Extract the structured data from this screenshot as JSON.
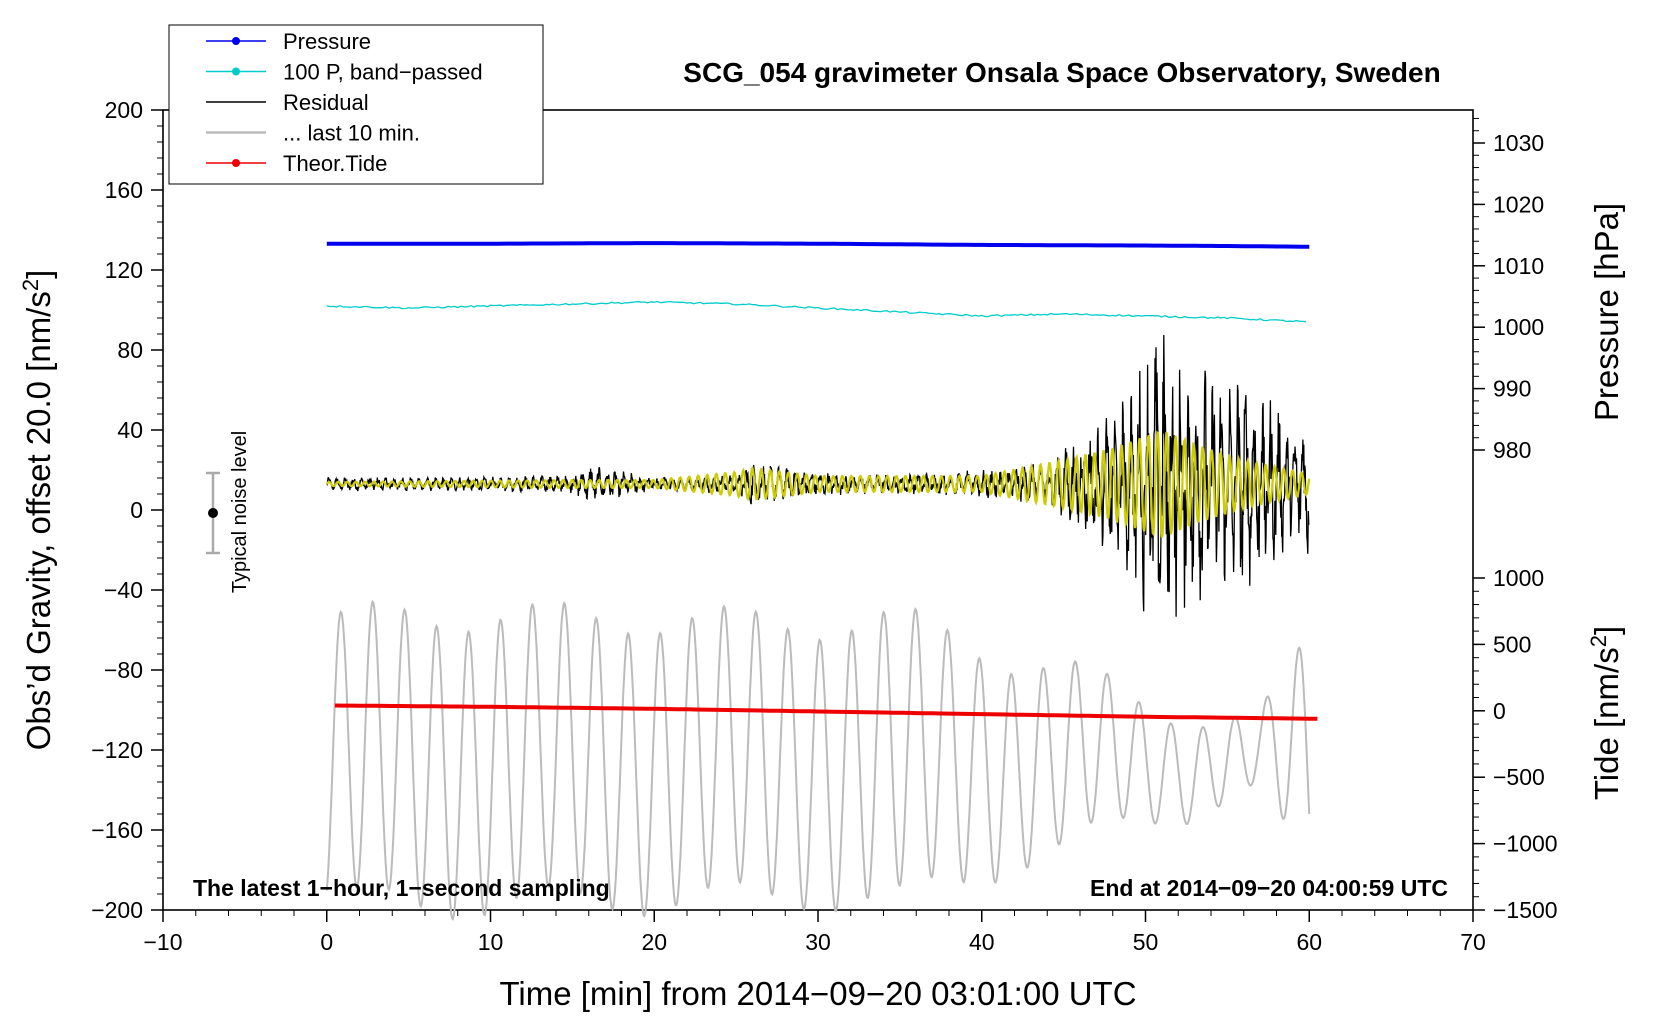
{
  "chart_data": {
    "type": "line",
    "title": "SCG_054 gravimeter Onsala Space Observatory, Sweden",
    "xlabel": "Time [min] from 2014−09−20 03:01:00 UTC",
    "ylabel": "Obs’d Gravity, offset 20.0 [nm/s²]",
    "ylabel_parts": {
      "main": "Obs’d Gravity, offset 20.0 [nm/s",
      "sup": "2",
      "end": "]"
    },
    "right_top_label": "Pressure [hPa]",
    "right_bottom_label": "Tide [nm/s²]",
    "right_bottom_label_parts": {
      "main": "Tide [nm/s",
      "sup": "2",
      "end": "]"
    },
    "xlim": [
      -10,
      70
    ],
    "ylim": [
      -200,
      200
    ],
    "pressure_axis_range": [
      973,
      1035
    ],
    "tide_axis_range": [
      -1500,
      1000
    ],
    "x_ticks": [
      -10,
      0,
      10,
      20,
      30,
      40,
      50,
      60,
      70
    ],
    "x_tick_labels": [
      "−10",
      "0",
      "10",
      "20",
      "30",
      "40",
      "50",
      "60",
      "70"
    ],
    "y_ticks": [
      200,
      160,
      120,
      80,
      40,
      0,
      -40,
      -80,
      -120,
      -160,
      -200
    ],
    "y_tick_labels": [
      "200",
      "160",
      "120",
      "80",
      "40",
      "0",
      "−40",
      "−80",
      "−120",
      "−160",
      "−200"
    ],
    "pressure_ticks": [
      1030,
      1020,
      1010,
      1000,
      990,
      980
    ],
    "pressure_tick_labels": [
      "1030",
      "1020",
      "1010",
      "1000",
      "990",
      "980"
    ],
    "tide_ticks": [
      1000,
      500,
      0,
      -500,
      -1000,
      -1500
    ],
    "tide_tick_labels": [
      "1000",
      "500",
      "0",
      "−500",
      "−1000",
      "−1500"
    ],
    "legend": {
      "position": "top-left",
      "entries": [
        {
          "label": "Pressure",
          "color": "#0000ee",
          "marker": true
        },
        {
          "label": "100 P, band−passed",
          "color": "#00cccc",
          "marker": true
        },
        {
          "label": "Residual",
          "color": "#000000",
          "marker": false
        },
        {
          "label": "... last 10 min.",
          "color": "#bbbbbb",
          "marker": false
        },
        {
          "label": "Theor.Tide",
          "color": "#ee0000",
          "marker": true
        }
      ]
    },
    "series": [
      {
        "name": "Pressure",
        "axis": "pressure",
        "color": "#0000ee",
        "x": [
          0,
          10,
          20,
          30,
          40,
          50,
          56,
          60
        ],
        "y": [
          1013.6,
          1013.6,
          1013.7,
          1013.6,
          1013.4,
          1013.3,
          1013.2,
          1013.1
        ]
      },
      {
        "name": "100 P, band−passed",
        "axis": "gravity",
        "color": "#00cccc",
        "x": [
          0,
          5,
          10,
          15,
          20,
          25,
          30,
          35,
          40,
          45,
          50,
          55,
          60
        ],
        "y": [
          102,
          101,
          102,
          103,
          104,
          103,
          101,
          99,
          97,
          98,
          97,
          96,
          94
        ]
      },
      {
        "name": "Residual",
        "axis": "gravity",
        "color": "#000000",
        "x": [
          0,
          10,
          15,
          16,
          20,
          25,
          26,
          30,
          35,
          40,
          43,
          45,
          48,
          50,
          51,
          52,
          54,
          56,
          58,
          59,
          60
        ],
        "amplitude": [
          3,
          3,
          4,
          8,
          3,
          4,
          10,
          5,
          4,
          6,
          8,
          15,
          30,
          55,
          65,
          55,
          50,
          45,
          35,
          20,
          35
        ],
        "center": 13
      },
      {
        "name": "Residual (filtered)",
        "axis": "gravity",
        "color": "#cccc00",
        "x": [
          0,
          15,
          20,
          25,
          26,
          30,
          40,
          45,
          48,
          51,
          53,
          56,
          60
        ],
        "amplitude": [
          1,
          2,
          2,
          6,
          8,
          4,
          4,
          12,
          18,
          27,
          20,
          12,
          5
        ],
        "center": 13
      },
      {
        "name": "... last 10 min.",
        "axis": "gravity",
        "color": "#bbbbbb",
        "x": [
          0,
          5,
          10,
          20,
          30,
          35,
          38,
          42,
          45,
          48,
          50,
          52,
          55,
          57,
          59,
          60
        ],
        "amplitude": [
          70,
          72,
          72,
          70,
          68,
          70,
          62,
          50,
          45,
          35,
          28,
          25,
          20,
          18,
          45,
          62
        ],
        "center": -125
      },
      {
        "name": "Theor.Tide",
        "axis": "tide",
        "color": "#ee0000",
        "x": [
          0.5,
          10,
          20,
          30,
          40,
          50,
          60.5
        ],
        "y": [
          40,
          30,
          15,
          -5,
          -25,
          -45,
          -60
        ]
      }
    ],
    "noise_bar": {
      "label": "Typical noise level",
      "x": -7,
      "center": 0,
      "half_range": 20
    },
    "annotations": {
      "bottom_left": "The latest 1−hour, 1−second sampling",
      "bottom_right": "End at 2014−09−20 04:00:59 UTC"
    }
  }
}
